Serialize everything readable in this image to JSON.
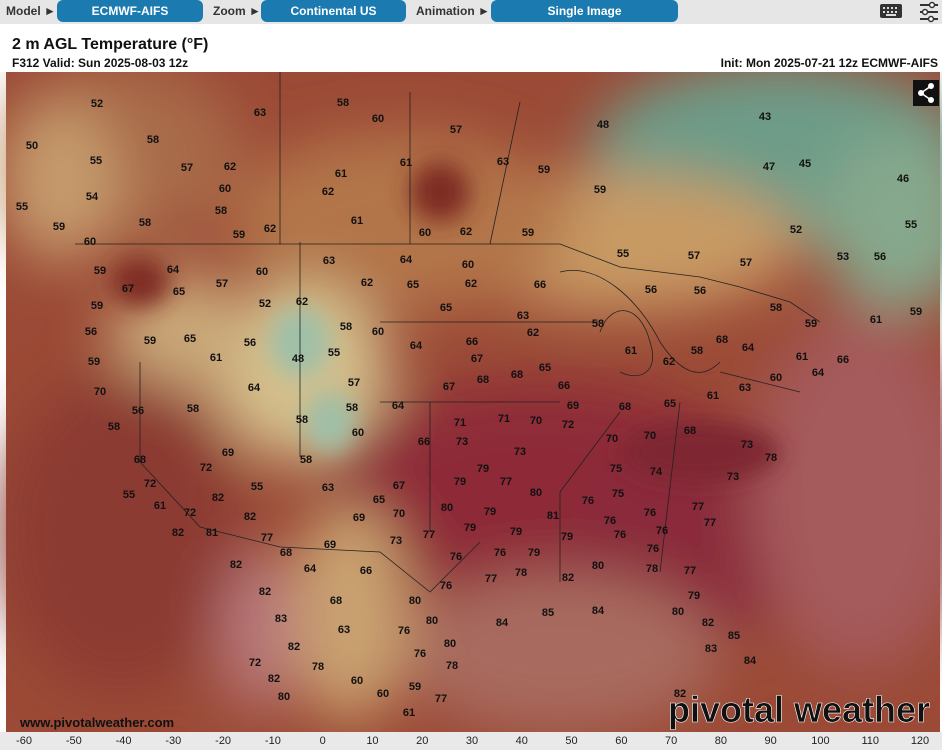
{
  "toolbar": {
    "model_label": "Model ►",
    "model": "ECMWF-AIFS",
    "zoom_label": "Zoom ►",
    "zoom": "Continental US",
    "animation_label": "Animation ►",
    "animation": "Single Image"
  },
  "header": {
    "title": "2 m AGL Temperature (°F)",
    "valid": "F312 Valid: Sun 2025-08-03 12z",
    "init": "Init: Mon 2025-07-21 12z ECMWF-AIFS"
  },
  "map": {
    "labels": [
      52,
      50,
      58,
      55,
      57,
      62,
      63,
      58,
      60,
      57,
      48,
      43,
      54,
      60,
      62,
      61,
      61,
      63,
      59,
      59,
      47,
      45,
      46,
      58,
      58,
      55,
      59,
      60,
      59,
      62,
      61,
      60,
      62,
      59,
      55,
      57,
      57,
      52,
      55,
      56,
      53,
      59,
      64,
      60,
      63,
      64,
      60,
      67,
      65,
      57,
      62,
      65,
      62,
      66,
      56,
      56,
      52,
      62,
      59,
      58,
      65,
      56,
      59,
      65,
      56,
      60,
      63,
      62,
      58,
      61,
      62,
      64,
      66,
      48,
      55,
      61,
      59,
      67,
      65,
      58,
      68,
      64,
      58,
      59,
      61,
      59,
      61,
      66,
      64,
      60,
      63,
      70,
      56,
      58,
      64,
      57,
      67,
      68,
      68,
      66,
      58,
      58,
      64,
      71,
      71,
      70,
      69,
      68,
      65,
      61,
      58,
      60,
      66,
      73,
      73,
      72,
      70,
      70,
      68,
      68,
      69,
      58,
      72,
      73,
      78,
      72,
      55,
      82,
      63,
      65,
      67,
      79,
      79,
      77,
      75,
      74,
      73,
      55,
      61,
      82,
      70,
      69,
      80,
      79,
      80,
      76,
      75,
      76,
      77,
      72,
      82,
      81,
      77,
      73,
      77,
      79,
      79,
      81,
      76,
      76,
      77,
      79,
      76,
      76,
      68,
      69,
      76,
      76,
      79,
      64,
      66,
      76,
      77,
      78,
      82,
      80,
      78,
      77,
      82,
      82,
      68,
      80,
      85,
      84,
      84,
      79,
      80,
      83,
      63,
      76,
      80,
      82,
      85,
      82,
      80,
      76,
      83,
      78,
      78,
      72,
      84,
      82,
      60,
      59,
      60,
      80,
      61,
      77,
      82
    ]
  },
  "colorbar": {
    "ticks": [
      -60,
      -50,
      -40,
      -30,
      -20,
      -10,
      0,
      10,
      20,
      30,
      40,
      50,
      60,
      70,
      80,
      90,
      100,
      110,
      120
    ]
  },
  "footer": {
    "url": "www.pivotalweather.com",
    "logo": "pivotal weather"
  }
}
